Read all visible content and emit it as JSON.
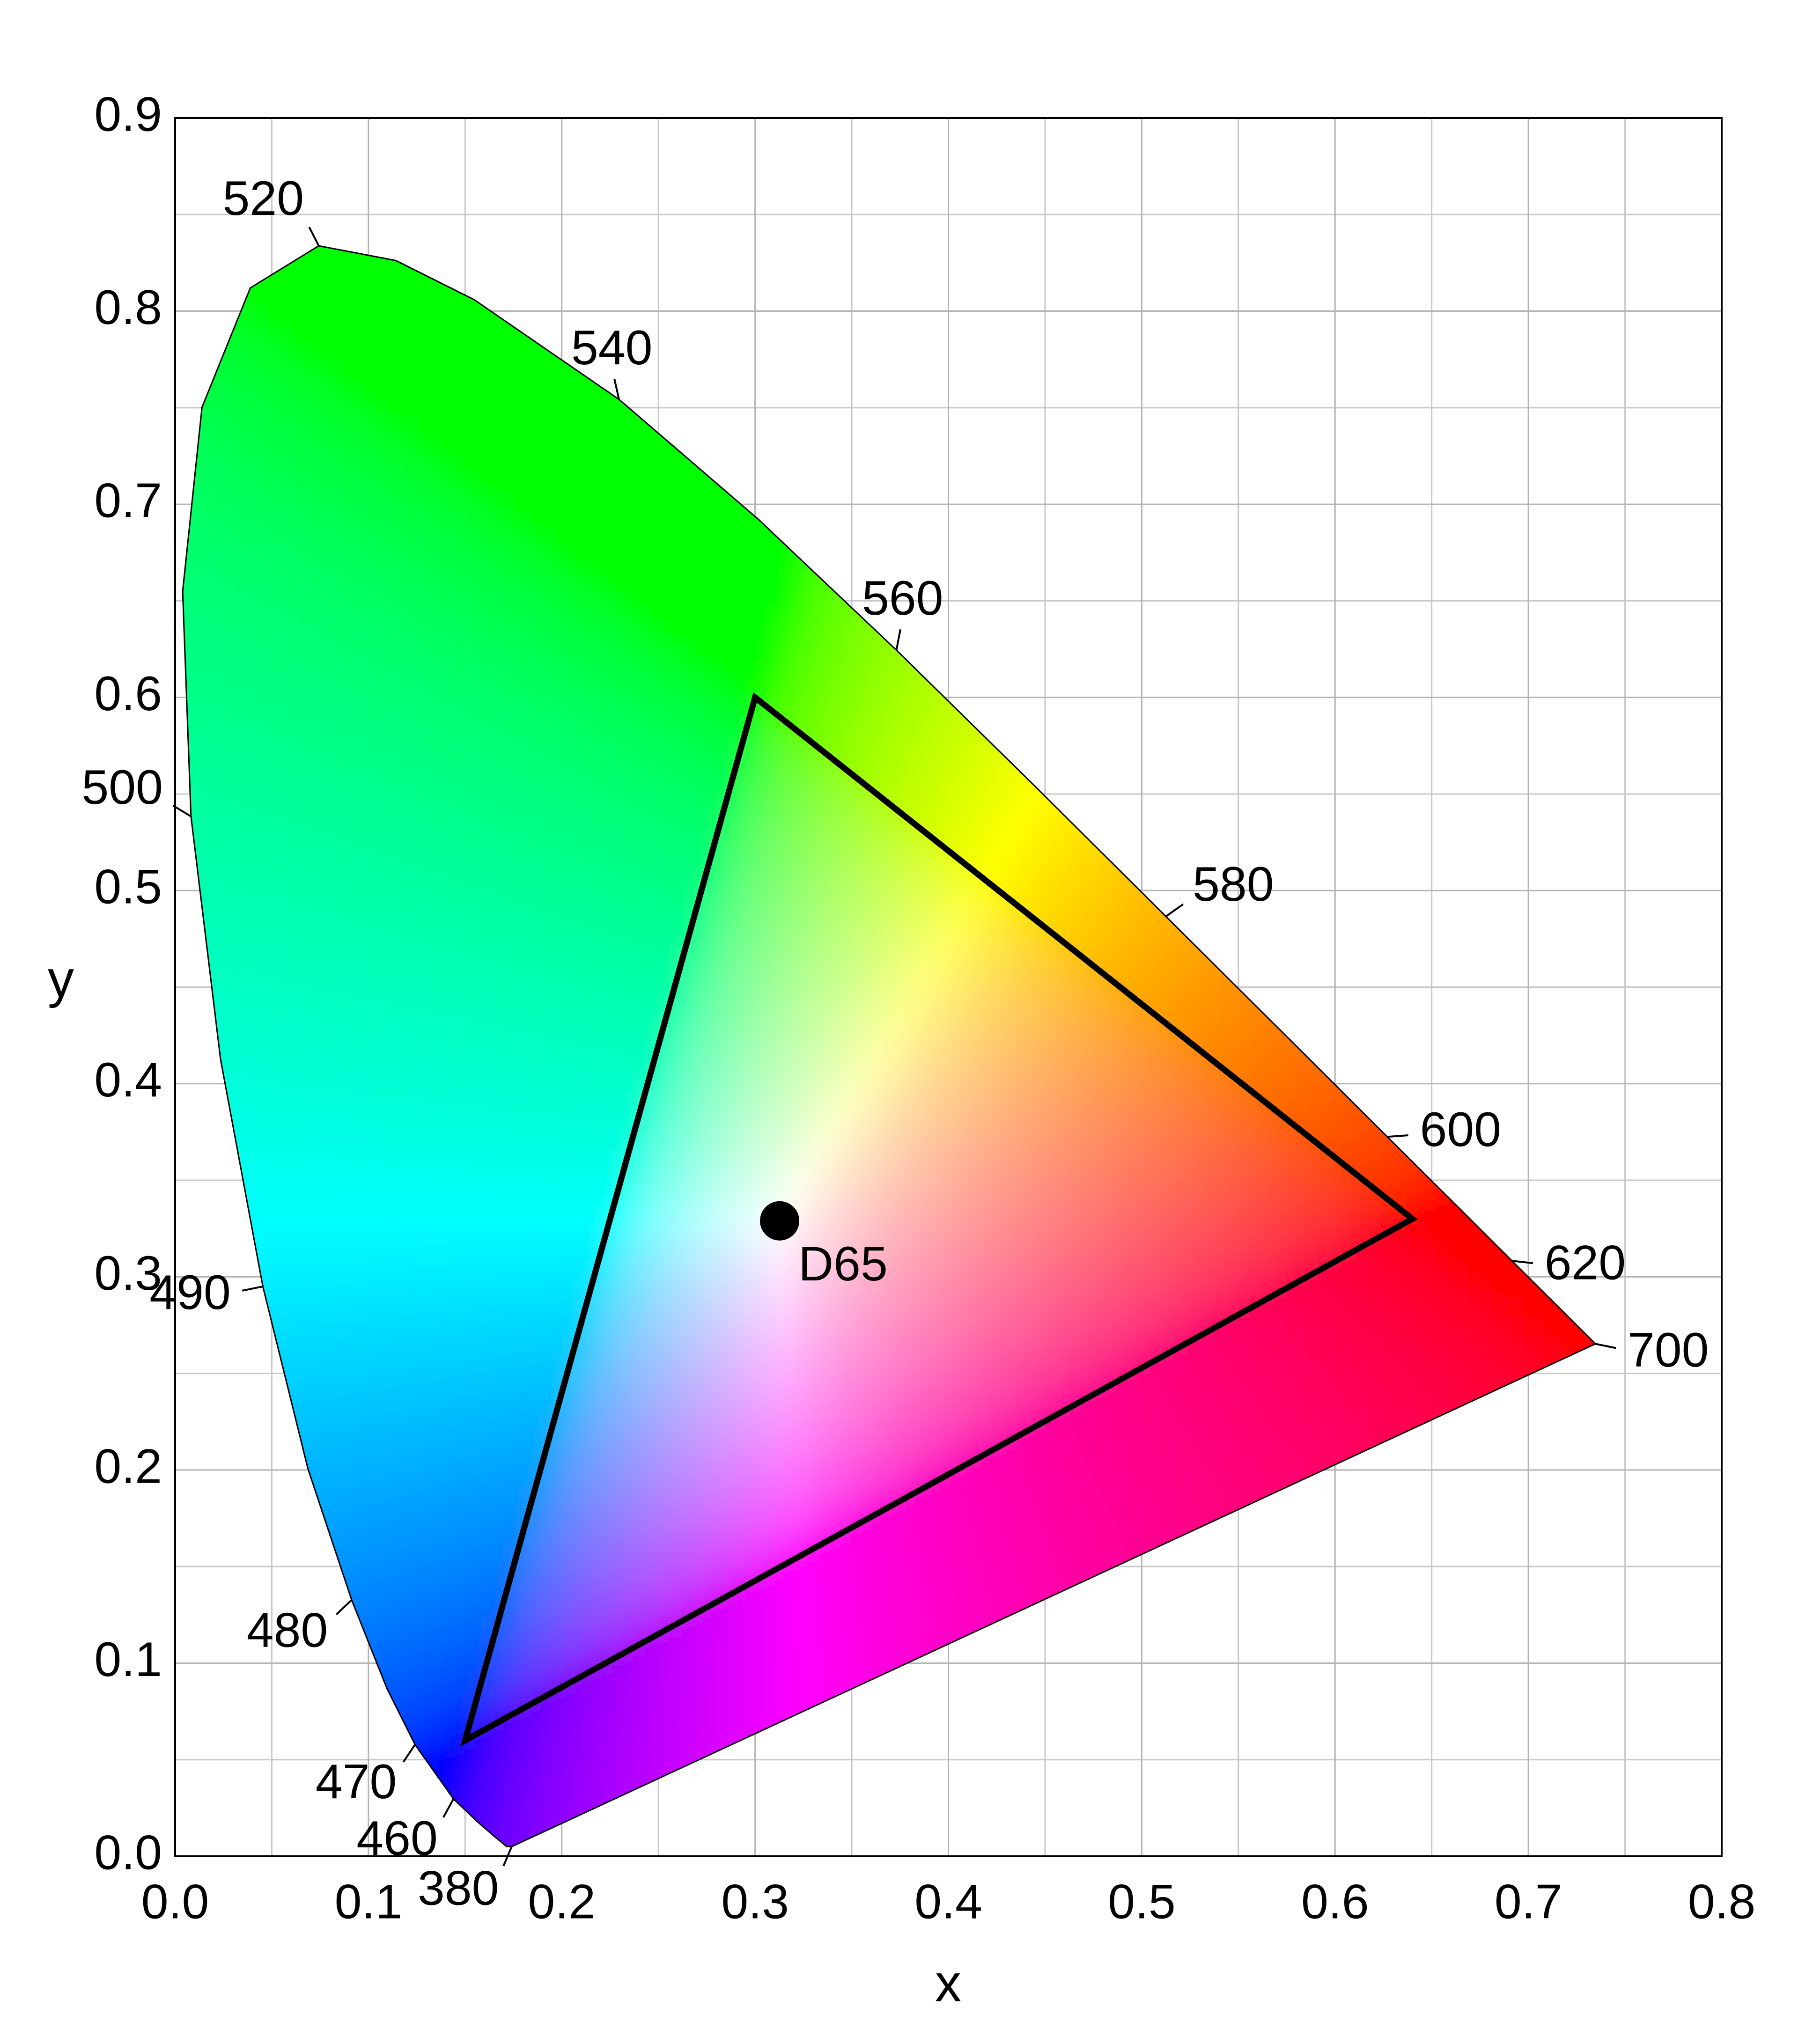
{
  "chart_data": {
    "type": "chromaticity",
    "x_label": "x",
    "y_label": "y",
    "xlim": [
      0,
      0.8
    ],
    "ylim": [
      0,
      0.9
    ],
    "xticks": [
      {
        "value": 0,
        "label": "0.0"
      },
      0.1,
      0.2,
      0.3,
      0.4,
      0.5,
      0.6,
      0.7,
      0.8
    ],
    "yticks": [
      {
        "value": 0,
        "label": "0.0"
      },
      0.1,
      0.2,
      0.3,
      0.4,
      0.5,
      0.6,
      0.7,
      0.8,
      0.9
    ],
    "xminor": [
      0.05,
      0.15,
      0.25,
      0.35,
      0.45,
      0.55,
      0.65,
      0.75
    ],
    "yminor": [
      0.05,
      0.15,
      0.25,
      0.35,
      0.45,
      0.55,
      0.65,
      0.75,
      0.85
    ],
    "grid": true,
    "categories": [
      380,
      null,
      null,
      null,
      460,
      470,
      null,
      480,
      null,
      490,
      null,
      500,
      null,
      null,
      null,
      520,
      null,
      null,
      540,
      null,
      560,
      null,
      580,
      null,
      600,
      null,
      620,
      null,
      700
    ],
    "x": [
      0.1741,
      0.1714,
      0.1644,
      0.1566,
      0.144,
      0.1241,
      0.1096,
      0.0913,
      0.0687,
      0.0454,
      0.0235,
      0.0082,
      0.0039,
      0.0139,
      0.0389,
      0.0743,
      0.1142,
      0.1547,
      0.2296,
      0.3016,
      0.3731,
      0.4441,
      0.5125,
      0.5752,
      0.627,
      0.6658,
      0.6915,
      0.719,
      0.7347
    ],
    "series": [
      {
        "color": "#000000",
        "values": [
          0.005,
          0.0051,
          0.0109,
          0.0177,
          0.0297,
          0.0578,
          0.0868,
          0.1327,
          0.2007,
          0.295,
          0.4127,
          0.5384,
          0.6548,
          0.7502,
          0.812,
          0.8338,
          0.8262,
          0.8059,
          0.7543,
          0.6923,
          0.6245,
          0.5547,
          0.4866,
          0.4242,
          0.3725,
          0.334,
          0.3083,
          0.2809,
          0.2653
        ]
      }
    ],
    "label_color": "#1a6cc8",
    "triangle": {
      "color": "#000000",
      "x": [
        0.64,
        0.3,
        0.15
      ],
      "y": [
        0.33,
        0.6,
        0.06
      ]
    },
    "white_point": {
      "label": "D65",
      "x": 0.3127,
      "y": 0.329,
      "color": "#000000"
    }
  }
}
